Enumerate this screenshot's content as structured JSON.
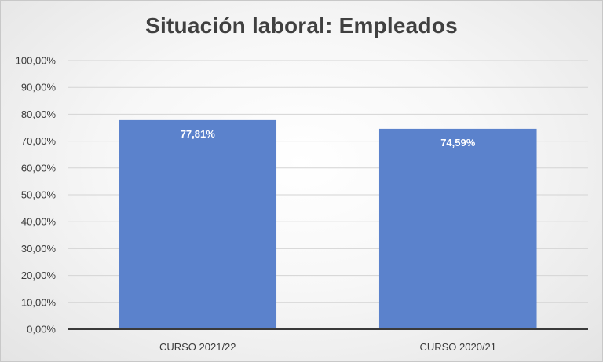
{
  "chart_data": {
    "type": "bar",
    "title": "Situación laboral: Empleados",
    "categories": [
      "CURSO 2021/22",
      "CURSO 2020/21"
    ],
    "values": [
      77.81,
      74.59
    ],
    "data_labels": [
      "77,81%",
      "74,59%"
    ],
    "ylim": [
      0,
      100
    ],
    "yticks": [
      "0,00%",
      "10,00%",
      "20,00%",
      "30,00%",
      "40,00%",
      "50,00%",
      "60,00%",
      "70,00%",
      "80,00%",
      "90,00%",
      "100,00%"
    ],
    "xlabel": "",
    "ylabel": "",
    "grid": true,
    "legend": "none",
    "bar_color": "#5b82cc"
  }
}
